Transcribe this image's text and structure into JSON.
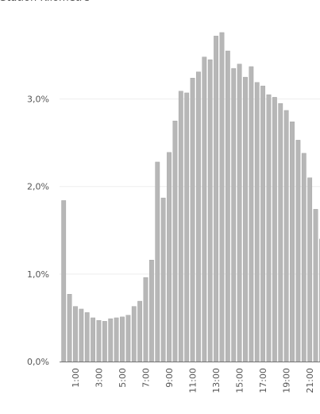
{
  "header_fragment": "Station Kilomètre",
  "colors": {
    "bar": "#b7b7b7",
    "bar_edge": "#9f9f9f",
    "grid": "#eeeeee",
    "axis": "#777777",
    "text": "#555555"
  },
  "chart_data": {
    "type": "bar",
    "title": "",
    "xlabel": "",
    "ylabel": "",
    "ylim": [
      0,
      3.95
    ],
    "grid": true,
    "y_ticks": [
      {
        "value": 0,
        "label": "0,0%"
      },
      {
        "value": 1,
        "label": "1,0%"
      },
      {
        "value": 2,
        "label": "2,0%"
      },
      {
        "value": 3,
        "label": "3,0%"
      }
    ],
    "x_ticks": [
      {
        "index": 2,
        "label": "1:00"
      },
      {
        "index": 6,
        "label": "3:00"
      },
      {
        "index": 10,
        "label": "5:00"
      },
      {
        "index": 14,
        "label": "7:00"
      },
      {
        "index": 18,
        "label": "9:00"
      },
      {
        "index": 22,
        "label": "11:00"
      },
      {
        "index": 26,
        "label": "13:00"
      },
      {
        "index": 30,
        "label": "15:00"
      },
      {
        "index": 34,
        "label": "17:00"
      },
      {
        "index": 38,
        "label": "19:00"
      },
      {
        "index": 42,
        "label": "21:00"
      }
    ],
    "values": [
      1.84,
      0.77,
      0.63,
      0.6,
      0.56,
      0.5,
      0.47,
      0.46,
      0.49,
      0.5,
      0.51,
      0.53,
      0.63,
      0.69,
      0.96,
      1.16,
      2.28,
      1.87,
      2.39,
      2.75,
      3.09,
      3.07,
      3.24,
      3.31,
      3.48,
      3.45,
      3.72,
      3.76,
      3.55,
      3.35,
      3.4,
      3.25,
      3.37,
      3.19,
      3.15,
      3.05,
      3.02,
      2.95,
      2.87,
      2.74,
      2.53,
      2.38,
      2.1,
      1.74,
      1.4
    ]
  }
}
